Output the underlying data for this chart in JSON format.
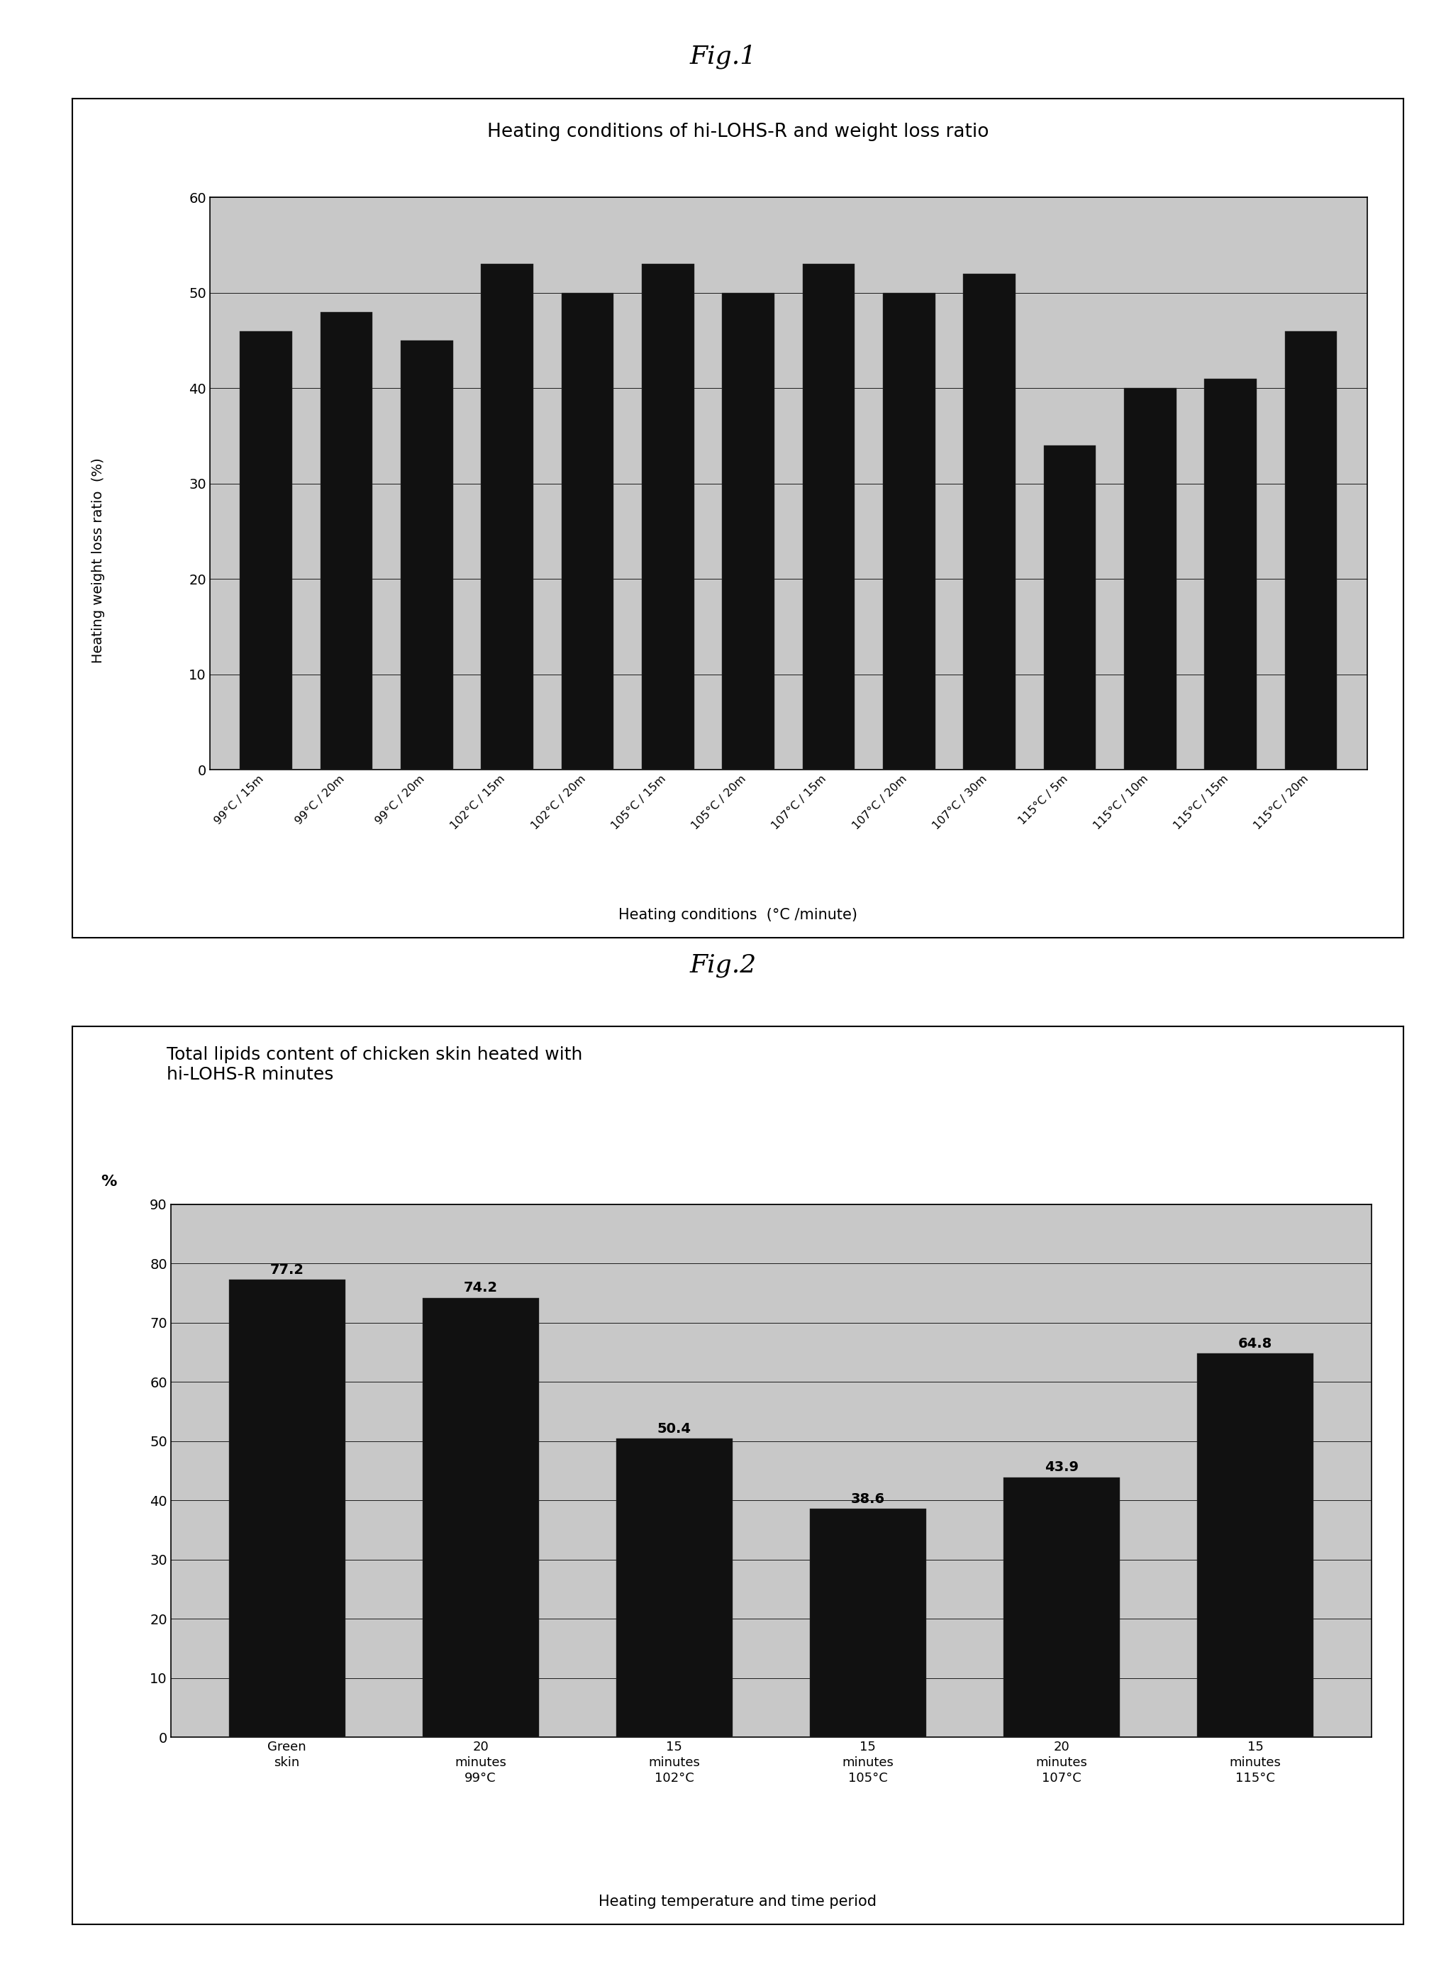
{
  "fig1_title": "Heating conditions of hi-LOHS-R and weight loss ratio",
  "fig1_xlabel": "Heating conditions  (°C /minute)",
  "fig1_ylabel": "Heating weight loss ratio  (%)",
  "fig1_categories": [
    "99°C / 15m",
    "99°C / 20m",
    "99°C / 20m",
    "102°C / 15m",
    "102°C / 20m",
    "105°C / 15m",
    "105°C / 20m",
    "107°C / 15m",
    "107°C / 20m",
    "107°C / 30m",
    "115°C / 5m",
    "115°C / 10m",
    "115°C / 15m",
    "115°C / 20m"
  ],
  "fig1_values": [
    46,
    48,
    45,
    53,
    50,
    53,
    50,
    53,
    50,
    52,
    34,
    40,
    41,
    46
  ],
  "fig1_ylim": [
    0,
    60
  ],
  "fig1_yticks": [
    0,
    10,
    20,
    30,
    40,
    50,
    60
  ],
  "fig1_bar_color": "#111111",
  "fig1_bg_color": "#c8c8c8",
  "fig1_title_label": "Fig.1",
  "fig2_title_line1": "Total lipids content of chicken skin heated with",
  "fig2_title_line2": "hi-LOHS-R minutes",
  "fig2_ylabel_unit": "%",
  "fig2_xlabel": "Heating temperature and time period",
  "fig2_cat_top": [
    "Green\nskin",
    "20\nminutes",
    "15\nminutes",
    "15\nminutes",
    "20\nminutes",
    "15\nminutes"
  ],
  "fig2_cat_bot": [
    "",
    "99°C",
    "102°C",
    "105°C",
    "107°C",
    "115°C"
  ],
  "fig2_values": [
    77.2,
    74.2,
    50.4,
    38.6,
    43.9,
    64.8
  ],
  "fig2_labels": [
    "77.2",
    "74.2",
    "50.4",
    "38.6",
    "43.9",
    "64.8"
  ],
  "fig2_ylim": [
    0,
    90
  ],
  "fig2_yticks": [
    0,
    10,
    20,
    30,
    40,
    50,
    60,
    70,
    80,
    90
  ],
  "fig2_bar_color": "#111111",
  "fig2_bg_color": "#c8c8c8",
  "fig2_title_label": "Fig.2"
}
